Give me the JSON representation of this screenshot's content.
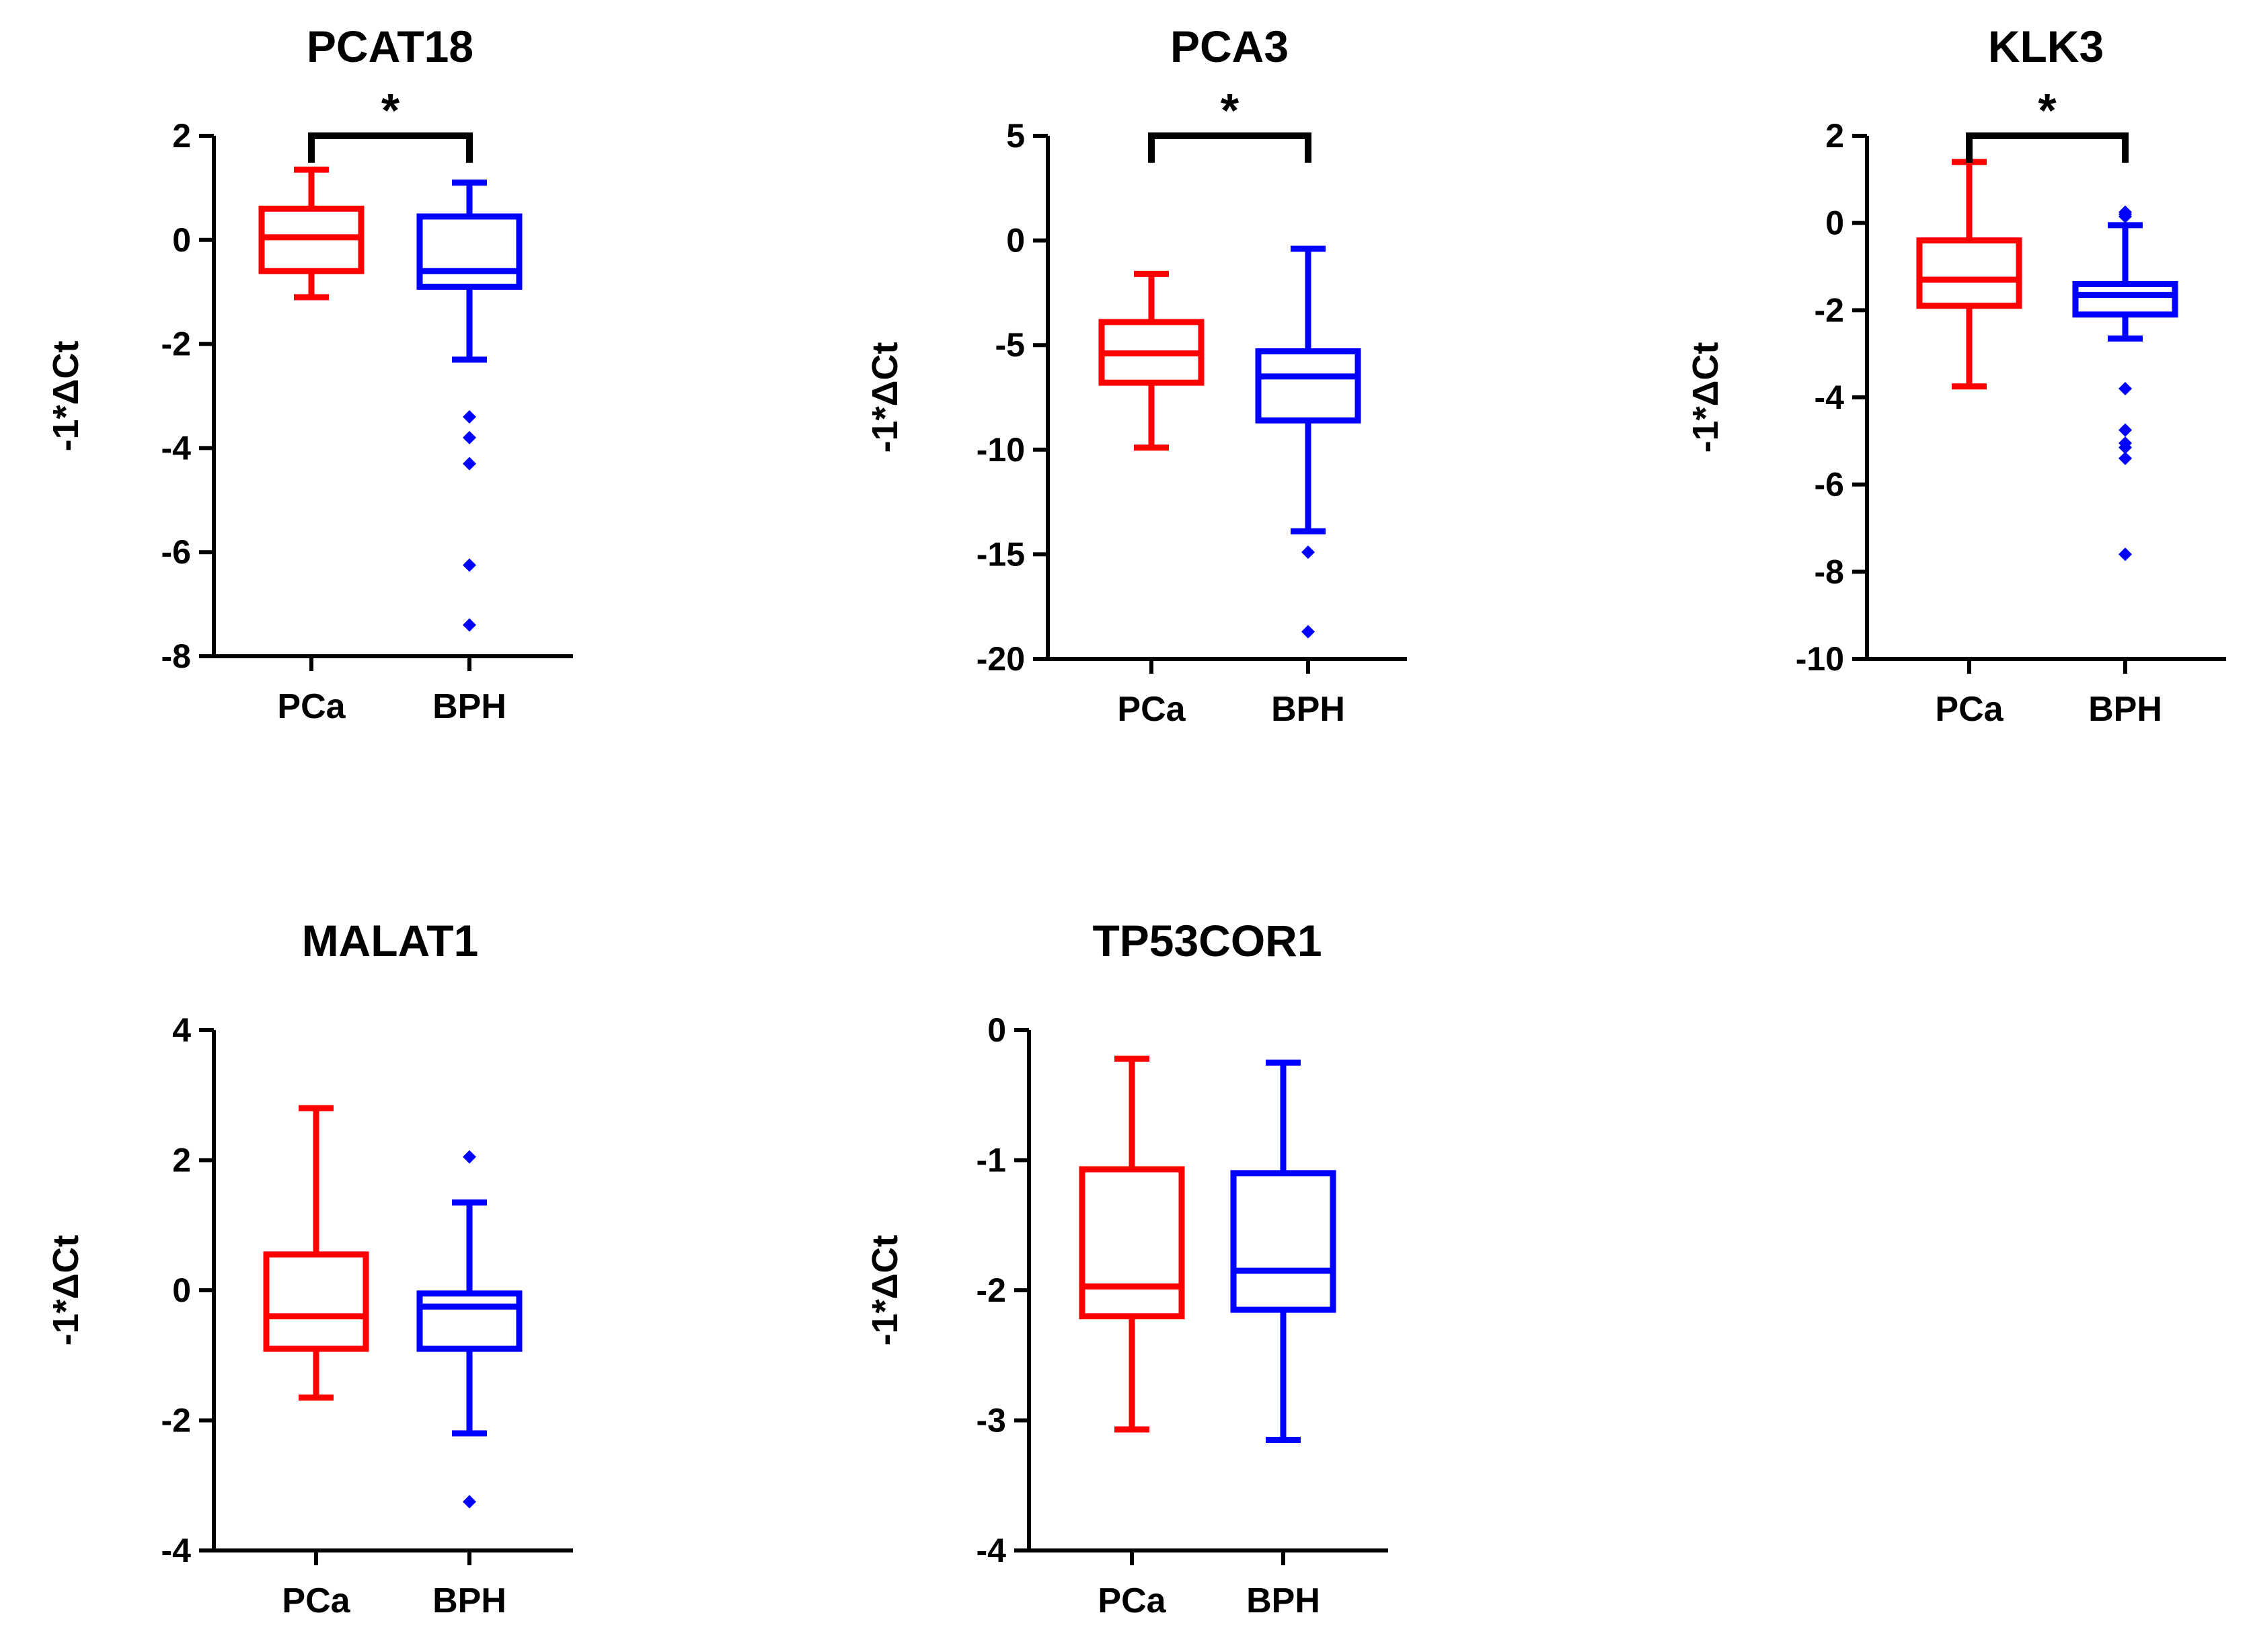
{
  "chart_data": [
    {
      "type": "box",
      "title": "PCAT18",
      "ylabel": "-1*ΔCt",
      "categories": [
        "PCa",
        "BPH"
      ],
      "ylim": [
        -8,
        2
      ],
      "yticks": [
        "2",
        "0",
        "-2",
        "-4",
        "-6",
        "-8"
      ],
      "significance": "*",
      "series": [
        {
          "category": "PCa",
          "color": "#ff0000",
          "whisker_low": -1.1,
          "q1": -0.6,
          "median": 0.05,
          "q3": 0.6,
          "whisker_high": 1.35,
          "outliers": []
        },
        {
          "category": "BPH",
          "color": "#0000ff",
          "whisker_low": -2.3,
          "q1": -0.9,
          "median": -0.6,
          "q3": 0.45,
          "whisker_high": 1.1,
          "outliers": [
            -3.4,
            -3.8,
            -4.3,
            -6.25,
            -7.4
          ]
        }
      ]
    },
    {
      "type": "box",
      "title": "PCA3",
      "ylabel": "-1*ΔCt",
      "categories": [
        "PCa",
        "BPH"
      ],
      "ylim": [
        -20,
        5
      ],
      "yticks": [
        "5",
        "0",
        "-5",
        "-10",
        "-15",
        "-20"
      ],
      "significance": "*",
      "series": [
        {
          "category": "PCa",
          "color": "#ff0000",
          "whisker_low": -9.9,
          "q1": -6.8,
          "median": -5.4,
          "q3": -3.9,
          "whisker_high": -1.6,
          "outliers": []
        },
        {
          "category": "BPH",
          "color": "#0000ff",
          "whisker_low": -13.9,
          "q1": -8.6,
          "median": -6.5,
          "q3": -5.3,
          "whisker_high": -0.4,
          "outliers": [
            -14.9,
            -18.7
          ]
        }
      ]
    },
    {
      "type": "box",
      "title": "KLK3",
      "ylabel": "-1*ΔCt",
      "categories": [
        "PCa",
        "BPH"
      ],
      "ylim": [
        -10,
        2
      ],
      "yticks": [
        "2",
        "0",
        "-2",
        "-4",
        "-6",
        "-8",
        "-10"
      ],
      "significance": "*",
      "series": [
        {
          "category": "PCa",
          "color": "#ff0000",
          "whisker_low": -3.75,
          "q1": -1.9,
          "median": -1.3,
          "q3": -0.4,
          "whisker_high": 1.4,
          "outliers": []
        },
        {
          "category": "BPH",
          "color": "#0000ff",
          "whisker_low": -2.65,
          "q1": -2.1,
          "median": -1.65,
          "q3": -1.4,
          "whisker_high": -0.05,
          "outliers": [
            0.15,
            0.2,
            0.25,
            -3.8,
            -4.75,
            -5.05,
            -5.15,
            -5.4,
            -7.6
          ]
        }
      ]
    },
    {
      "type": "box",
      "title": "MALAT1",
      "ylabel": "-1*ΔCt",
      "categories": [
        "PCa",
        "BPH"
      ],
      "ylim": [
        -4,
        4
      ],
      "yticks": [
        "4",
        "2",
        "0",
        "-2",
        "-4"
      ],
      "significance": "",
      "series": [
        {
          "category": "PCa",
          "color": "#ff0000",
          "whisker_low": -1.65,
          "q1": -0.9,
          "median": -0.4,
          "q3": 0.55,
          "whisker_high": 2.8,
          "outliers": []
        },
        {
          "category": "BPH",
          "color": "#0000ff",
          "whisker_low": -2.2,
          "q1": -0.9,
          "median": -0.25,
          "q3": -0.05,
          "whisker_high": 1.35,
          "outliers": [
            2.05,
            -3.25
          ]
        }
      ]
    },
    {
      "type": "box",
      "title": "TP53COR1",
      "ylabel": "-1*ΔCt",
      "categories": [
        "PCa",
        "BPH"
      ],
      "ylim": [
        -4,
        0
      ],
      "yticks": [
        "0",
        "-1",
        "-2",
        "-3",
        "-4"
      ],
      "significance": "",
      "series": [
        {
          "category": "PCa",
          "color": "#ff0000",
          "whisker_low": -3.07,
          "q1": -2.2,
          "median": -1.97,
          "q3": -1.07,
          "whisker_high": -0.22,
          "outliers": []
        },
        {
          "category": "BPH",
          "color": "#0000ff",
          "whisker_low": -3.15,
          "q1": -2.15,
          "median": -1.85,
          "q3": -1.1,
          "whisker_high": -0.25,
          "outliers": []
        }
      ]
    }
  ]
}
